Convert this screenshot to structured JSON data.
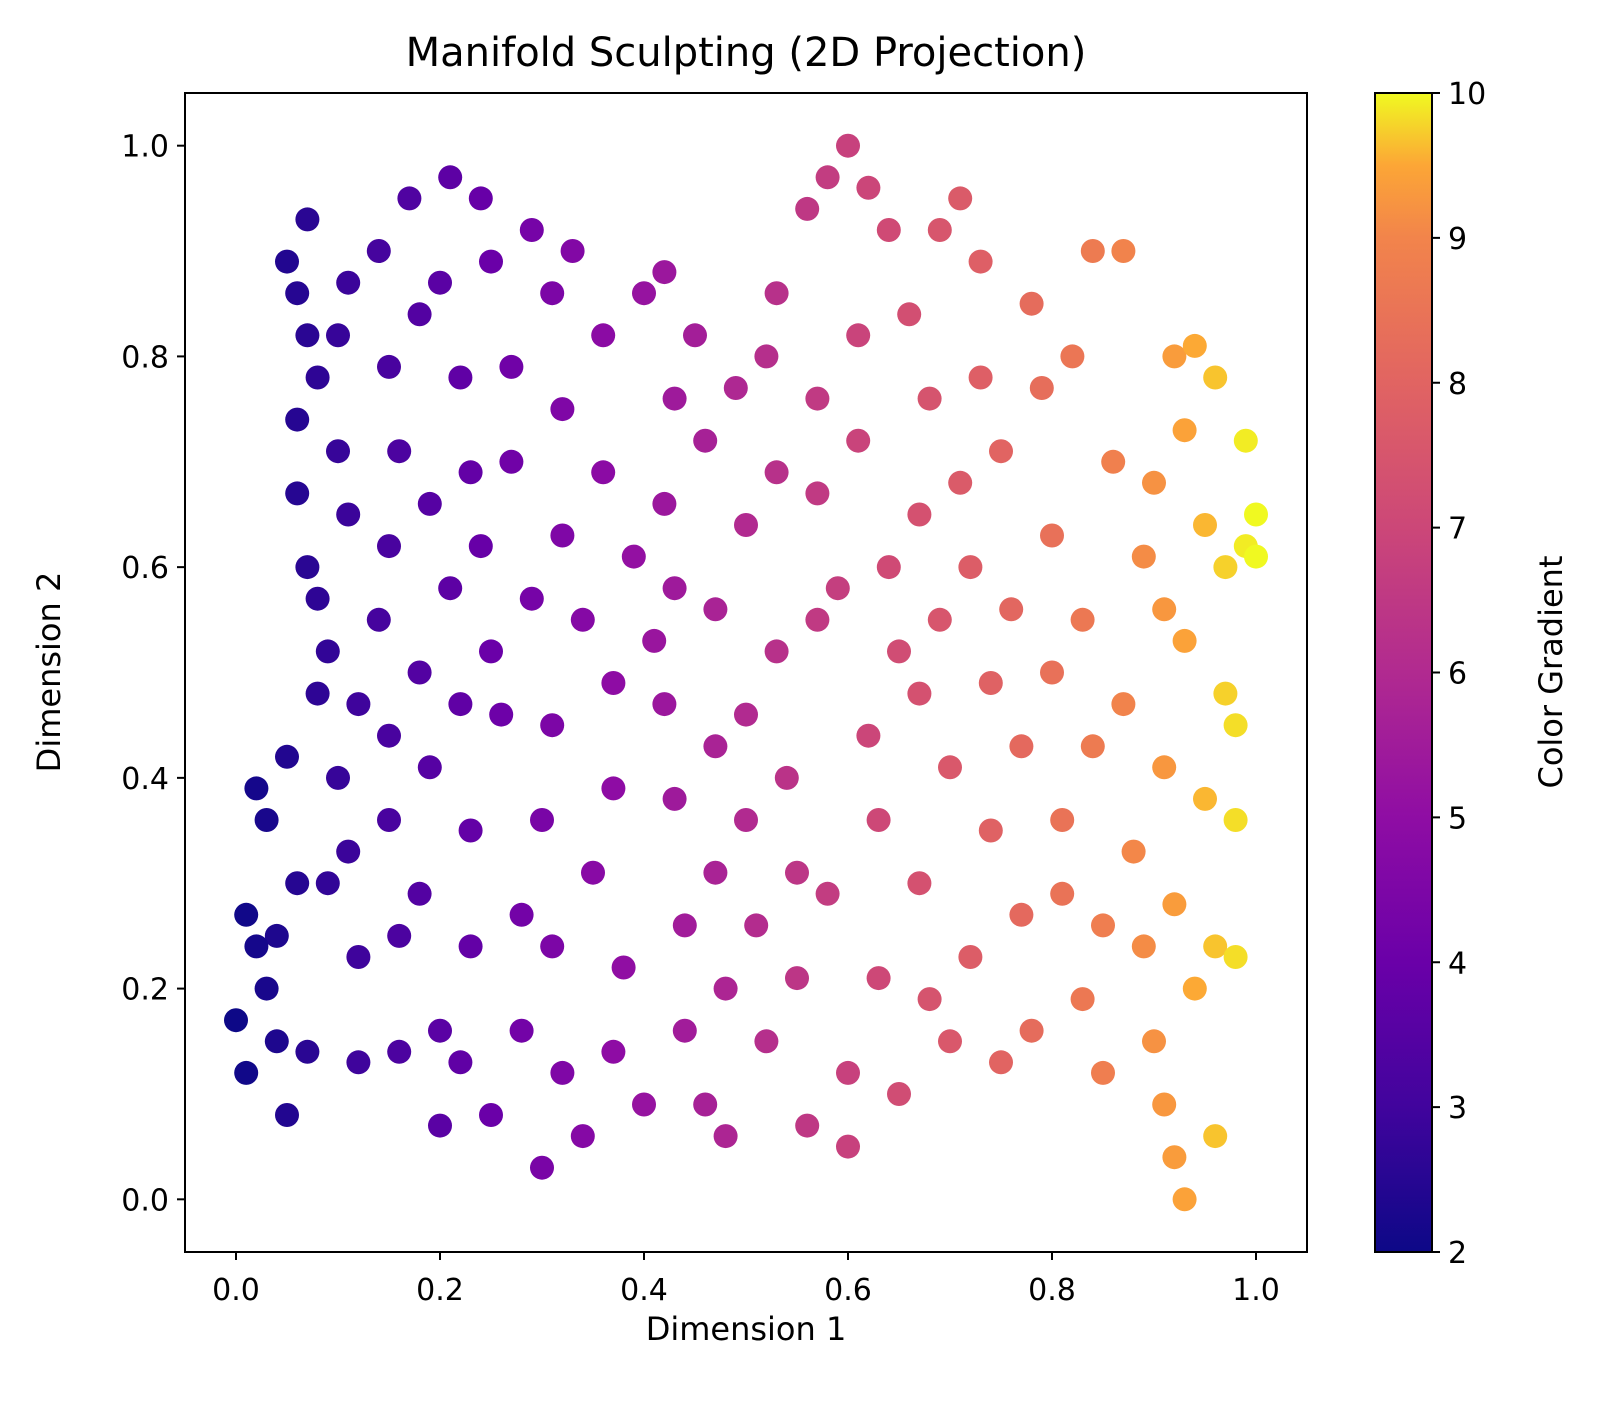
{
  "chart_data": {
    "type": "scatter",
    "title": "Manifold Sculpting (2D Projection)",
    "xlabel": "Dimension 1",
    "ylabel": "Dimension 2",
    "xlim": [
      -0.05,
      1.05
    ],
    "ylim": [
      -0.05,
      1.05
    ],
    "xticks": [
      "0.0",
      "0.2",
      "0.4",
      "0.6",
      "0.8",
      "1.0"
    ],
    "yticks": [
      "0.0",
      "0.2",
      "0.4",
      "0.6",
      "0.8",
      "1.0"
    ],
    "grid": false,
    "colormap": "plasma",
    "colorbar": {
      "label": "Color Gradient",
      "range": [
        2,
        10
      ],
      "ticks": [
        "2",
        "3",
        "4",
        "5",
        "6",
        "7",
        "8",
        "9",
        "10"
      ]
    },
    "points": [
      [
        0.0,
        0.17
      ],
      [
        0.01,
        0.27
      ],
      [
        0.02,
        0.39
      ],
      [
        0.01,
        0.12
      ],
      [
        0.03,
        0.2
      ],
      [
        0.03,
        0.36
      ],
      [
        0.04,
        0.25
      ],
      [
        0.05,
        0.08
      ],
      [
        0.05,
        0.42
      ],
      [
        0.06,
        0.3
      ],
      [
        0.02,
        0.24
      ],
      [
        0.04,
        0.15
      ],
      [
        0.07,
        0.14
      ],
      [
        0.08,
        0.48
      ],
      [
        0.09,
        0.52
      ],
      [
        0.07,
        0.6
      ],
      [
        0.06,
        0.67
      ],
      [
        0.06,
        0.74
      ],
      [
        0.07,
        0.82
      ],
      [
        0.06,
        0.86
      ],
      [
        0.05,
        0.89
      ],
      [
        0.07,
        0.93
      ],
      [
        0.08,
        0.78
      ],
      [
        0.08,
        0.57
      ],
      [
        0.1,
        0.4
      ],
      [
        0.11,
        0.33
      ],
      [
        0.12,
        0.23
      ],
      [
        0.12,
        0.13
      ],
      [
        0.11,
        0.65
      ],
      [
        0.1,
        0.71
      ],
      [
        0.11,
        0.87
      ],
      [
        0.1,
        0.82
      ],
      [
        0.09,
        0.3
      ],
      [
        0.12,
        0.47
      ],
      [
        0.14,
        0.9
      ],
      [
        0.15,
        0.79
      ],
      [
        0.16,
        0.71
      ],
      [
        0.15,
        0.62
      ],
      [
        0.14,
        0.55
      ],
      [
        0.15,
        0.44
      ],
      [
        0.15,
        0.36
      ],
      [
        0.16,
        0.25
      ],
      [
        0.16,
        0.14
      ],
      [
        0.17,
        0.95
      ],
      [
        0.18,
        0.5
      ],
      [
        0.18,
        0.84
      ],
      [
        0.19,
        0.66
      ],
      [
        0.19,
        0.41
      ],
      [
        0.18,
        0.29
      ],
      [
        0.2,
        0.16
      ],
      [
        0.21,
        0.97
      ],
      [
        0.21,
        0.58
      ],
      [
        0.2,
        0.07
      ],
      [
        0.2,
        0.87
      ],
      [
        0.22,
        0.78
      ],
      [
        0.23,
        0.69
      ],
      [
        0.22,
        0.47
      ],
      [
        0.23,
        0.35
      ],
      [
        0.23,
        0.24
      ],
      [
        0.22,
        0.13
      ],
      [
        0.24,
        0.95
      ],
      [
        0.25,
        0.89
      ],
      [
        0.24,
        0.62
      ],
      [
        0.25,
        0.52
      ],
      [
        0.25,
        0.08
      ],
      [
        0.26,
        0.46
      ],
      [
        0.27,
        0.7
      ],
      [
        0.27,
        0.79
      ],
      [
        0.28,
        0.27
      ],
      [
        0.28,
        0.16
      ],
      [
        0.29,
        0.92
      ],
      [
        0.3,
        0.03
      ],
      [
        0.29,
        0.57
      ],
      [
        0.3,
        0.36
      ],
      [
        0.31,
        0.86
      ],
      [
        0.32,
        0.75
      ],
      [
        0.32,
        0.63
      ],
      [
        0.31,
        0.45
      ],
      [
        0.31,
        0.24
      ],
      [
        0.32,
        0.12
      ],
      [
        0.33,
        0.9
      ],
      [
        0.34,
        0.55
      ],
      [
        0.35,
        0.31
      ],
      [
        0.34,
        0.06
      ],
      [
        0.36,
        0.82
      ],
      [
        0.36,
        0.69
      ],
      [
        0.37,
        0.49
      ],
      [
        0.37,
        0.39
      ],
      [
        0.38,
        0.22
      ],
      [
        0.37,
        0.14
      ],
      [
        0.39,
        0.61
      ],
      [
        0.4,
        0.09
      ],
      [
        0.4,
        0.86
      ],
      [
        0.41,
        0.53
      ],
      [
        0.42,
        0.88
      ],
      [
        0.43,
        0.76
      ],
      [
        0.42,
        0.66
      ],
      [
        0.43,
        0.58
      ],
      [
        0.42,
        0.47
      ],
      [
        0.43,
        0.38
      ],
      [
        0.44,
        0.26
      ],
      [
        0.44,
        0.16
      ],
      [
        0.45,
        0.82
      ],
      [
        0.46,
        0.09
      ],
      [
        0.46,
        0.72
      ],
      [
        0.47,
        0.43
      ],
      [
        0.47,
        0.56
      ],
      [
        0.47,
        0.31
      ],
      [
        0.48,
        0.06
      ],
      [
        0.48,
        0.2
      ],
      [
        0.49,
        0.77
      ],
      [
        0.5,
        0.64
      ],
      [
        0.5,
        0.46
      ],
      [
        0.5,
        0.36
      ],
      [
        0.51,
        0.26
      ],
      [
        0.52,
        0.15
      ],
      [
        0.52,
        0.8
      ],
      [
        0.53,
        0.69
      ],
      [
        0.53,
        0.52
      ],
      [
        0.53,
        0.86
      ],
      [
        0.54,
        0.4
      ],
      [
        0.55,
        0.31
      ],
      [
        0.55,
        0.21
      ],
      [
        0.56,
        0.07
      ],
      [
        0.56,
        0.94
      ],
      [
        0.57,
        0.76
      ],
      [
        0.57,
        0.67
      ],
      [
        0.57,
        0.55
      ],
      [
        0.58,
        0.97
      ],
      [
        0.58,
        0.29
      ],
      [
        0.59,
        0.58
      ],
      [
        0.6,
        1.0
      ],
      [
        0.6,
        0.12
      ],
      [
        0.6,
        0.05
      ],
      [
        0.61,
        0.82
      ],
      [
        0.61,
        0.72
      ],
      [
        0.62,
        0.96
      ],
      [
        0.62,
        0.44
      ],
      [
        0.63,
        0.36
      ],
      [
        0.63,
        0.21
      ],
      [
        0.64,
        0.6
      ],
      [
        0.64,
        0.92
      ],
      [
        0.65,
        0.52
      ],
      [
        0.65,
        0.1
      ],
      [
        0.66,
        0.84
      ],
      [
        0.67,
        0.65
      ],
      [
        0.67,
        0.48
      ],
      [
        0.67,
        0.3
      ],
      [
        0.68,
        0.19
      ],
      [
        0.68,
        0.76
      ],
      [
        0.69,
        0.92
      ],
      [
        0.69,
        0.55
      ],
      [
        0.7,
        0.41
      ],
      [
        0.7,
        0.15
      ],
      [
        0.71,
        0.95
      ],
      [
        0.71,
        0.68
      ],
      [
        0.72,
        0.6
      ],
      [
        0.72,
        0.23
      ],
      [
        0.73,
        0.89
      ],
      [
        0.73,
        0.78
      ],
      [
        0.74,
        0.49
      ],
      [
        0.74,
        0.35
      ],
      [
        0.75,
        0.13
      ],
      [
        0.75,
        0.71
      ],
      [
        0.76,
        0.56
      ],
      [
        0.77,
        0.27
      ],
      [
        0.77,
        0.43
      ],
      [
        0.78,
        0.85
      ],
      [
        0.78,
        0.16
      ],
      [
        0.79,
        0.77
      ],
      [
        0.8,
        0.63
      ],
      [
        0.8,
        0.5
      ],
      [
        0.81,
        0.36
      ],
      [
        0.81,
        0.29
      ],
      [
        0.82,
        0.8
      ],
      [
        0.83,
        0.19
      ],
      [
        0.83,
        0.55
      ],
      [
        0.84,
        0.9
      ],
      [
        0.84,
        0.43
      ],
      [
        0.85,
        0.26
      ],
      [
        0.85,
        0.12
      ],
      [
        0.86,
        0.7
      ],
      [
        0.87,
        0.9
      ],
      [
        0.87,
        0.47
      ],
      [
        0.88,
        0.33
      ],
      [
        0.89,
        0.61
      ],
      [
        0.89,
        0.24
      ],
      [
        0.9,
        0.68
      ],
      [
        0.9,
        0.15
      ],
      [
        0.91,
        0.41
      ],
      [
        0.91,
        0.56
      ],
      [
        0.91,
        0.09
      ],
      [
        0.92,
        0.8
      ],
      [
        0.92,
        0.28
      ],
      [
        0.92,
        0.04
      ],
      [
        0.93,
        0.0
      ],
      [
        0.93,
        0.73
      ],
      [
        0.93,
        0.53
      ],
      [
        0.94,
        0.81
      ],
      [
        0.94,
        0.2
      ],
      [
        0.95,
        0.64
      ],
      [
        0.95,
        0.38
      ],
      [
        0.96,
        0.78
      ],
      [
        0.96,
        0.24
      ],
      [
        0.96,
        0.06
      ],
      [
        0.97,
        0.48
      ],
      [
        0.97,
        0.6
      ],
      [
        0.98,
        0.36
      ],
      [
        0.98,
        0.45
      ],
      [
        0.98,
        0.23
      ],
      [
        0.99,
        0.72
      ],
      [
        0.99,
        0.62
      ],
      [
        1.0,
        0.65
      ],
      [
        1.0,
        0.61
      ]
    ]
  }
}
